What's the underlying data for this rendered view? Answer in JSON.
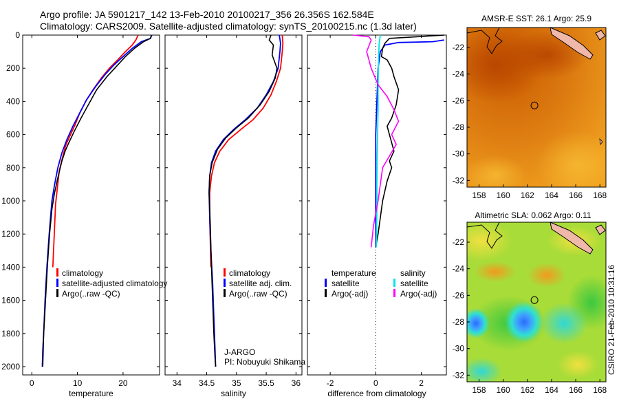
{
  "header": {
    "line1": "Argo profile: JA 5901217_142 13-Feb-2010 20100217_356 26.356S 162.584E",
    "line2": "Climatology: CARS2009. Satellite-adjusted climatology: synTS_20100215.nc (1.3d later)"
  },
  "footer": {
    "program": "J-ARGO",
    "pi": "PI: Nobuyuki Shikama",
    "stamp": "CSIRO 21-Feb-2010 10:31:16"
  },
  "colors": {
    "climatology": "#ff0000",
    "satellite": "#0000ff",
    "argo": "#000000",
    "salinity_satellite": "#00e5e5",
    "salinity_argo": "#ff00ff"
  },
  "chart_data": [
    {
      "type": "line",
      "xlabel": "temperature",
      "xticks": [
        0,
        10,
        20
      ],
      "xlim": [
        -2,
        28
      ],
      "yticks": [
        0,
        200,
        400,
        600,
        800,
        1000,
        1200,
        1400,
        1600,
        1800,
        2000
      ],
      "ylim": [
        2050,
        0
      ],
      "legend": [
        "climatology",
        "satellite-adjusted climatology",
        "Argo(..raw -QC)"
      ],
      "series": [
        {
          "name": "climatology",
          "color": "#ff0000",
          "x": [
            23.3,
            22.8,
            22.0,
            20.5,
            18.8,
            17.0,
            15.2,
            13.4,
            11.8,
            10.5,
            9.5,
            8.5,
            7.5,
            6.8,
            6.0,
            5.2,
            4.6
          ],
          "y": [
            0,
            30,
            60,
            100,
            150,
            200,
            260,
            330,
            400,
            470,
            540,
            600,
            660,
            730,
            820,
            1020,
            1400
          ]
        },
        {
          "name": "satellite-adjusted climatology",
          "color": "#0000ff",
          "x": [
            26.3,
            26.0,
            24.0,
            22.0,
            20.0,
            18.0,
            16.0,
            14.0,
            12.0,
            10.5,
            9.0,
            7.7,
            6.6,
            5.7,
            5.0,
            4.4,
            3.8,
            3.3,
            2.9,
            2.6,
            2.4,
            2.3
          ],
          "y": [
            0,
            20,
            40,
            80,
            130,
            180,
            240,
            310,
            390,
            470,
            550,
            630,
            710,
            800,
            900,
            1000,
            1200,
            1400,
            1600,
            1800,
            1900,
            2000
          ]
        },
        {
          "name": "Argo(..raw -QC)",
          "color": "#000000",
          "x": [
            26.2,
            26.0,
            24.5,
            22.5,
            20.5,
            18.5,
            16.5,
            14.2,
            12.4,
            10.8,
            9.3,
            8.1,
            7.3,
            6.6,
            5.8,
            5.0,
            4.4,
            3.9,
            3.4,
            3.0,
            2.6,
            2.4
          ],
          "y": [
            0,
            20,
            40,
            80,
            130,
            190,
            250,
            330,
            420,
            500,
            580,
            650,
            700,
            760,
            850,
            950,
            1050,
            1200,
            1400,
            1600,
            1800,
            2000
          ]
        }
      ]
    },
    {
      "type": "line",
      "xlabel": "salinity",
      "xticks": [
        34,
        34.5,
        35,
        35.5,
        36
      ],
      "xlim": [
        33.8,
        36.1
      ],
      "yticks": [
        0,
        200,
        400,
        600,
        800,
        1000,
        1200,
        1400,
        1600,
        1800,
        2000
      ],
      "ylim": [
        2050,
        0
      ],
      "legend": [
        "climatology",
        "satellite adj. clim.",
        "Argo(..raw -QC)"
      ],
      "series": [
        {
          "name": "climatology",
          "color": "#ff0000",
          "x": [
            35.77,
            35.78,
            35.77,
            35.74,
            35.67,
            35.58,
            35.45,
            35.28,
            35.07,
            34.87,
            34.72,
            34.63,
            34.58,
            34.55,
            34.55,
            34.56,
            34.57
          ],
          "y": [
            0,
            50,
            100,
            200,
            280,
            360,
            440,
            510,
            570,
            630,
            700,
            770,
            850,
            950,
            1100,
            1250,
            1400
          ]
        },
        {
          "name": "satellite adj. clim.",
          "color": "#0000ff",
          "x": [
            35.72,
            35.74,
            35.73,
            35.7,
            35.62,
            35.5,
            35.35,
            35.15,
            34.95,
            34.78,
            34.65,
            34.58,
            34.55,
            34.54,
            34.55,
            34.57,
            34.6,
            34.62,
            34.64,
            34.65
          ],
          "y": [
            0,
            50,
            100,
            200,
            280,
            360,
            440,
            510,
            570,
            630,
            700,
            770,
            850,
            950,
            1100,
            1300,
            1500,
            1700,
            1900,
            2000
          ]
        },
        {
          "name": "Argo(..raw -QC)",
          "color": "#000000",
          "x": [
            35.58,
            35.55,
            35.62,
            35.6,
            35.68,
            35.65,
            35.55,
            35.4,
            35.2,
            35.0,
            34.82,
            34.68,
            34.59,
            34.55,
            34.54,
            34.56,
            34.58,
            34.6,
            34.62,
            34.64,
            34.65
          ],
          "y": [
            0,
            30,
            60,
            120,
            200,
            260,
            340,
            420,
            500,
            560,
            620,
            690,
            770,
            850,
            950,
            1150,
            1400,
            1600,
            1800,
            1950,
            2000
          ]
        }
      ]
    },
    {
      "type": "line",
      "xlabel": "difference from climatology",
      "xticks": [
        -2,
        0,
        2
      ],
      "xlim": [
        -3.0,
        3.1
      ],
      "yticks": [
        0,
        200,
        400,
        600,
        800,
        1000,
        1200,
        1400,
        1600,
        1800,
        2000
      ],
      "ylim": [
        2050,
        0
      ],
      "legend": {
        "temperature_header": "temperature",
        "salinity_header": "salinity",
        "temperature_entries": [
          "satellite",
          "Argo(-adj)"
        ],
        "salinity_entries": [
          "satellite",
          "Argo(-adj)"
        ]
      },
      "series": [
        {
          "name": "satellite",
          "group": "temperature",
          "color": "#0000ff",
          "x": [
            3.0,
            2.5,
            1.0,
            0.4,
            0.2,
            0.1,
            0.05,
            0.0,
            0.0,
            0.0,
            0.0,
            0.0
          ],
          "y": [
            30,
            40,
            45,
            60,
            100,
            200,
            400,
            600,
            800,
            1000,
            1200,
            1280
          ]
        },
        {
          "name": "Argo(-adj)",
          "group": "temperature",
          "color": "#000000",
          "x": [
            3.0,
            1.8,
            0.6,
            0.4,
            0.3,
            0.25,
            0.5,
            0.7,
            0.8,
            1.0,
            0.9,
            0.7,
            0.5,
            0.6,
            0.7,
            0.8,
            0.6,
            0.7,
            0.5,
            0.3,
            0.2,
            0.1,
            0.0
          ],
          "y": [
            0,
            10,
            20,
            50,
            80,
            130,
            150,
            200,
            250,
            330,
            420,
            500,
            550,
            600,
            650,
            700,
            760,
            800,
            880,
            1000,
            1100,
            1200,
            1280
          ]
        },
        {
          "name": "satellite",
          "group": "salinity",
          "color": "#00e5e5",
          "x": [
            0.2,
            0.15,
            0.12,
            0.1,
            0.1,
            0.08,
            0.06,
            0.05,
            0.05,
            0.04,
            0.03,
            0.02
          ],
          "y": [
            0,
            50,
            150,
            300,
            450,
            600,
            750,
            900,
            1050,
            1150,
            1250,
            1280
          ]
        },
        {
          "name": "Argo(-adj)",
          "group": "salinity",
          "color": "#ff00ff",
          "x": [
            -1.0,
            -0.3,
            -0.2,
            -0.4,
            -0.2,
            0.1,
            0.5,
            0.8,
            1.0,
            0.7,
            0.9,
            0.3,
            0.1,
            -0.1,
            -0.2
          ],
          "y": [
            0,
            10,
            30,
            100,
            200,
            300,
            370,
            450,
            520,
            600,
            660,
            800,
            1000,
            1150,
            1280
          ]
        }
      ]
    },
    {
      "type": "heatmap",
      "title": "AMSR-E SST: 26.1  Argo: 25.9",
      "xticks": [
        158,
        160,
        162,
        164,
        166,
        168
      ],
      "yticks": [
        -22,
        -24,
        -26,
        -28,
        -30,
        -32
      ],
      "xlim": [
        157.0,
        168.5
      ],
      "ylim": [
        -32.5,
        -20.5
      ],
      "marker": {
        "lon": 162.584,
        "lat": -26.356
      }
    },
    {
      "type": "heatmap",
      "title": "Altimetric SLA: 0.062  Argo: 0.11",
      "xticks": [
        158,
        160,
        162,
        164,
        166,
        168
      ],
      "yticks": [
        -22,
        -24,
        -26,
        -28,
        -30,
        -32
      ],
      "xlim": [
        157.0,
        168.5
      ],
      "ylim": [
        -32.5,
        -20.5
      ],
      "marker": {
        "lon": 162.584,
        "lat": -26.356
      }
    }
  ]
}
